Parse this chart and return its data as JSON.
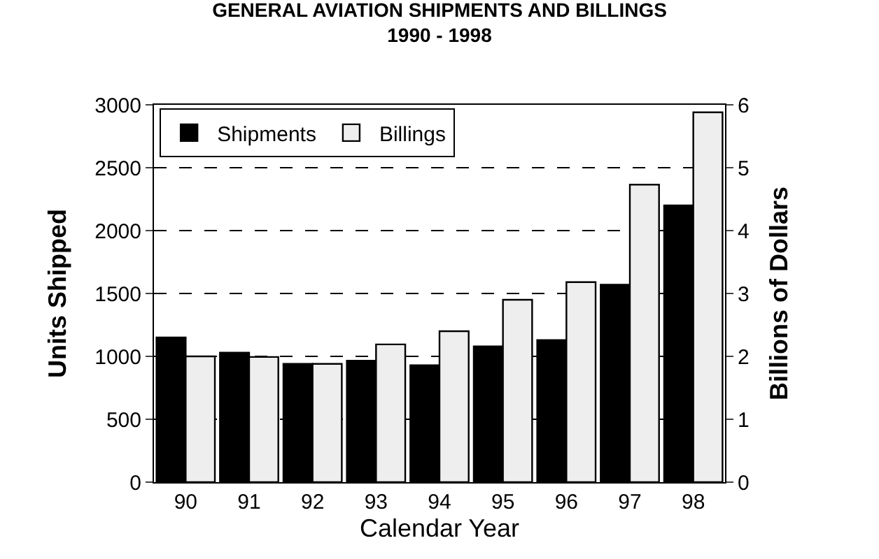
{
  "chart_data": {
    "type": "bar",
    "title": "GENERAL AVIATION SHIPMENTS AND BILLINGS",
    "subtitle": "1990 - 1998",
    "xlabel": "Calendar Year",
    "ylabel": "Units Shipped",
    "y2label": "Billions of Dollars",
    "categories": [
      "90",
      "91",
      "92",
      "93",
      "94",
      "95",
      "96",
      "97",
      "98"
    ],
    "series": [
      {
        "name": "Shipments",
        "color": "#000000",
        "values": [
          1150,
          1030,
          940,
          965,
          930,
          1080,
          1130,
          1570,
          2200
        ]
      },
      {
        "name": "Billings",
        "color": "#eeeeee",
        "axis": "y2",
        "values": [
          2.0,
          1.99,
          1.88,
          2.19,
          2.4,
          2.9,
          3.18,
          4.73,
          5.88
        ]
      }
    ],
    "ylim": [
      0,
      3000
    ],
    "yticks": [
      0,
      500,
      1000,
      1500,
      2000,
      2500,
      3000
    ],
    "y2lim": [
      0,
      6
    ],
    "y2ticks": [
      0,
      1,
      2,
      3,
      4,
      5,
      6
    ],
    "grid": "y",
    "legend": "top left"
  }
}
